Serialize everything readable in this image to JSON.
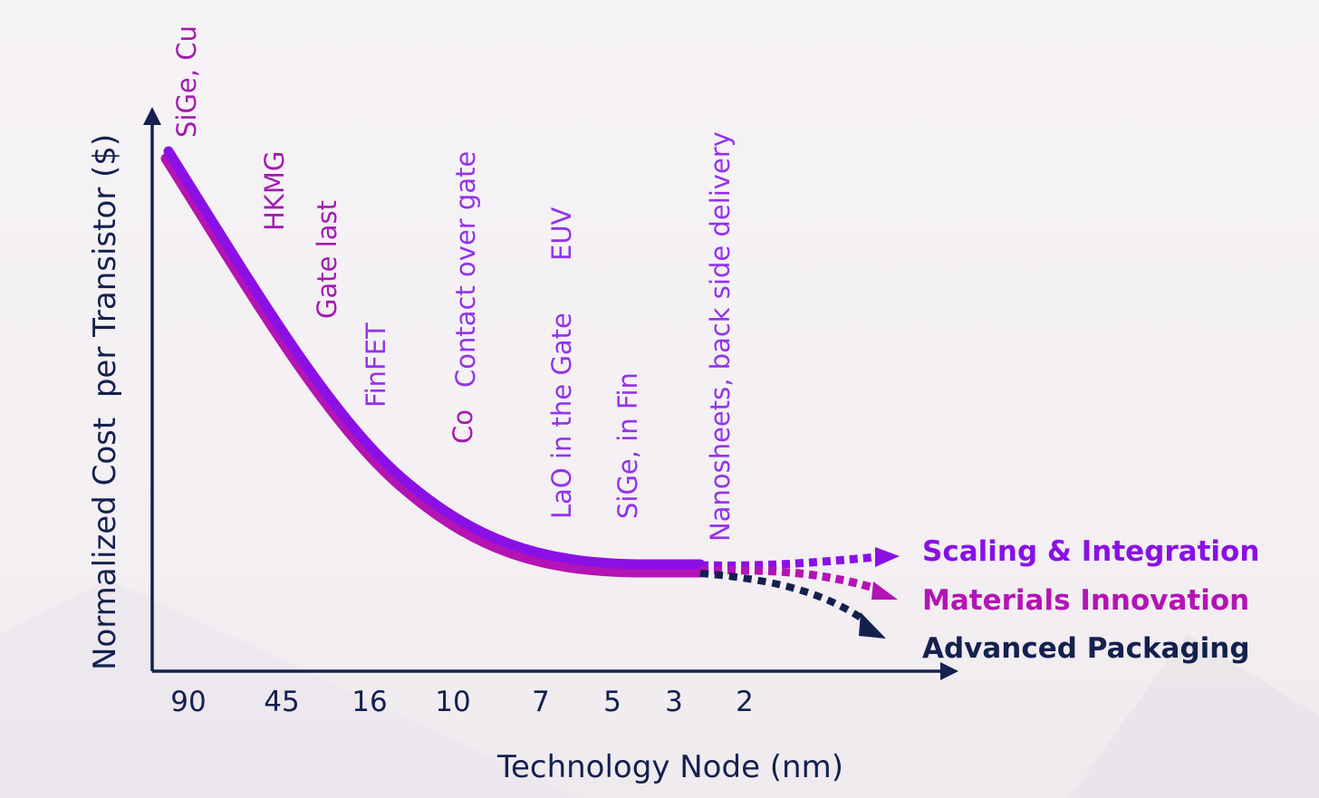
{
  "chart_data": {
    "type": "line",
    "xlabel": "Technology Node (nm)",
    "ylabel": "Normalized Cost  per Transistor ($)",
    "categories": [
      "90",
      "45",
      "16",
      "10",
      "7",
      "5",
      "3",
      "2"
    ],
    "annotations": [
      {
        "text": "SiGe, Cu",
        "node": "90",
        "color": "#a21caf"
      },
      {
        "text": "HKMG",
        "node": "45",
        "color": "#a21caf"
      },
      {
        "text": "Gate last",
        "node": "45",
        "color": "#a21caf"
      },
      {
        "text": "FinFET",
        "node": "16",
        "color": "#9333ea"
      },
      {
        "text": "Co",
        "node": "10",
        "color": "#a21caf"
      },
      {
        "text": "Contact over gate",
        "node": "10",
        "color": "#9333ea"
      },
      {
        "text": "LaO in the Gate",
        "node": "7",
        "color": "#9333ea"
      },
      {
        "text": "EUV",
        "node": "7",
        "color": "#9333ea"
      },
      {
        "text": "SiGe, in Fin",
        "node": "5",
        "color": "#9333ea"
      },
      {
        "text": "Nanosheets, back side delivery",
        "node": "3",
        "color": "#9333ea"
      }
    ],
    "series": [
      {
        "name": "Scaling & Integration",
        "color": "#8a10e6"
      },
      {
        "name": "Materials Innovation",
        "color": "#b414b4"
      },
      {
        "name": "Advanced Packaging",
        "color": "#14204e"
      }
    ]
  }
}
